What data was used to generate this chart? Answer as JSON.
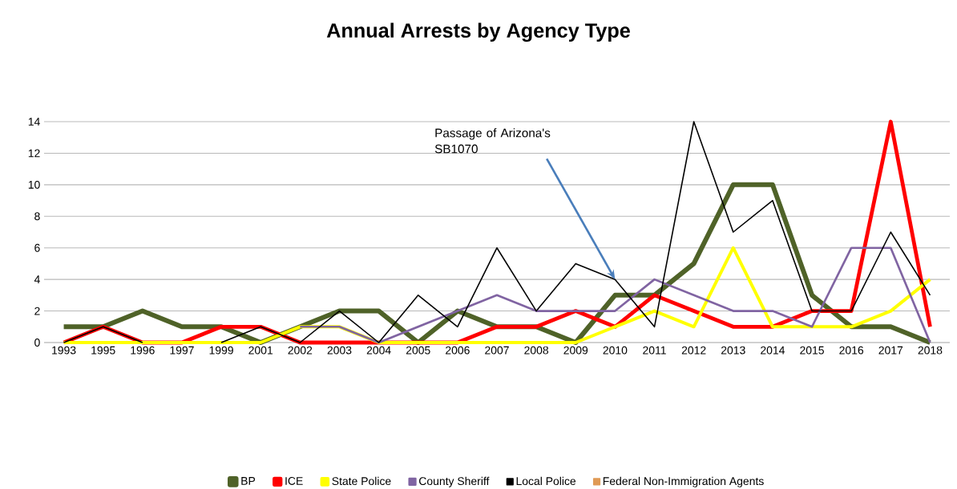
{
  "chart_data": {
    "type": "line",
    "title": "Annual Arrests by Agency Type",
    "categories": [
      "1993",
      "1995",
      "1996",
      "1997",
      "1999",
      "2001",
      "2002",
      "2003",
      "2004",
      "2005",
      "2006",
      "2007",
      "2008",
      "2009",
      "2010",
      "2011",
      "2012",
      "2013",
      "2014",
      "2015",
      "2016",
      "2017",
      "2018"
    ],
    "series": [
      {
        "name": "BP",
        "color": "#4f6228",
        "values": [
          1,
          1,
          2,
          1,
          1,
          0,
          1,
          2,
          2,
          0,
          2,
          1,
          1,
          0,
          3,
          3,
          5,
          10,
          10,
          3,
          1,
          1,
          0
        ]
      },
      {
        "name": "ICE",
        "color": "#ff0000",
        "values": [
          0,
          1,
          0,
          0,
          1,
          1,
          0,
          0,
          0,
          0,
          0,
          1,
          1,
          2,
          1,
          3,
          2,
          1,
          1,
          2,
          2,
          14,
          1
        ]
      },
      {
        "name": "State Police",
        "color": "#ffff00",
        "values": [
          0,
          0,
          0,
          0,
          0,
          0,
          1,
          1,
          0,
          0,
          0,
          0,
          0,
          0,
          1,
          2,
          1,
          6,
          1,
          1,
          1,
          2,
          4
        ]
      },
      {
        "name": "County Sheriff",
        "color": "#8064a2",
        "values": [
          null,
          null,
          null,
          null,
          null,
          null,
          1,
          1,
          0,
          1,
          2,
          3,
          2,
          2,
          2,
          4,
          3,
          2,
          2,
          1,
          6,
          6,
          0
        ]
      },
      {
        "name": "Local Police",
        "color": "#000000",
        "values": [
          0,
          1,
          0,
          null,
          0,
          1,
          0,
          2,
          0,
          3,
          1,
          6,
          2,
          5,
          4,
          1,
          14,
          7,
          9,
          2,
          2,
          7,
          3
        ]
      },
      {
        "name": "Federal Non-Immigration Agents",
        "color": "#e09a55",
        "values": [
          null,
          null,
          null,
          null,
          null,
          null,
          null,
          null,
          null,
          null,
          null,
          null,
          null,
          null,
          null,
          null,
          null,
          null,
          null,
          null,
          null,
          null,
          null
        ]
      }
    ],
    "ylim": [
      0,
      14
    ],
    "yticks": [
      0,
      2,
      4,
      6,
      8,
      10,
      12,
      14
    ],
    "grid": "y",
    "legend": "bottom",
    "marker": "none",
    "line_style": "solid",
    "annotations": [
      {
        "text": "Passage of Arizona's SB1070",
        "x": "2010",
        "y": 4
      }
    ]
  }
}
